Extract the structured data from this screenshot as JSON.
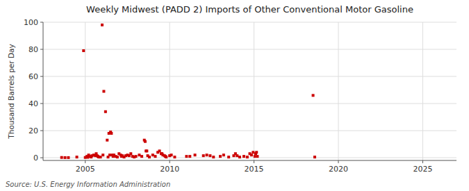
{
  "chart_data": {
    "type": "scatter",
    "title": "Weekly Midwest (PADD 2) Imports of Other Conventional Motor Gasoline",
    "ylabel": "Thousand Barrels per Day",
    "source": "Source: U.S. Energy Information Administration",
    "color": "#cc0000",
    "marker": "square",
    "grid": true,
    "xlim": [
      2002.5,
      2027.0
    ],
    "ylim": [
      -2,
      100
    ],
    "xticks": [
      2005,
      2010,
      2015,
      2020,
      2025
    ],
    "yticks": [
      0,
      20,
      40,
      60,
      80,
      100
    ],
    "x": [
      2003.6,
      2003.8,
      2004.0,
      2004.5,
      2004.9,
      2005.0,
      2005.1,
      2005.15,
      2005.2,
      2005.3,
      2005.35,
      2005.4,
      2005.5,
      2005.6,
      2005.65,
      2005.7,
      2005.75,
      2005.8,
      2005.9,
      2006.0,
      2006.05,
      2006.1,
      2006.2,
      2006.3,
      2006.35,
      2006.4,
      2006.45,
      2006.5,
      2006.55,
      2006.6,
      2006.65,
      2006.7,
      2006.8,
      2006.9,
      2007.0,
      2007.1,
      2007.15,
      2007.2,
      2007.3,
      2007.4,
      2007.5,
      2007.6,
      2007.7,
      2007.8,
      2007.9,
      2008.0,
      2008.2,
      2008.35,
      2008.5,
      2008.55,
      2008.6,
      2008.65,
      2008.7,
      2008.8,
      2009.0,
      2009.15,
      2009.3,
      2009.4,
      2009.5,
      2009.55,
      2009.6,
      2009.7,
      2009.75,
      2009.8,
      2010.0,
      2010.1,
      2010.3,
      2011.0,
      2011.2,
      2011.5,
      2012.0,
      2012.2,
      2012.4,
      2012.6,
      2013.0,
      2013.2,
      2013.5,
      2013.8,
      2013.9,
      2014.0,
      2014.15,
      2014.4,
      2014.6,
      2014.75,
      2014.85,
      2014.95,
      2015.05,
      2015.1,
      2015.15,
      2015.2,
      2018.5,
      2018.6
    ],
    "values": [
      0.2,
      0.1,
      0.1,
      0.5,
      79,
      0.2,
      1.0,
      0.3,
      2.0,
      1.0,
      0.5,
      1.5,
      2.0,
      1.5,
      3.0,
      1.5,
      1.0,
      0.5,
      0.5,
      98,
      2,
      49,
      34,
      13,
      0.5,
      18,
      2,
      19,
      18,
      2,
      1,
      2,
      1,
      0.5,
      3,
      2,
      1,
      1.5,
      0.5,
      1.5,
      2,
      1.5,
      3,
      1,
      0.5,
      1,
      2,
      1,
      13,
      12,
      5,
      5,
      1.5,
      0.5,
      2,
      1,
      4,
      5,
      3,
      3,
      2,
      1.5,
      1,
      0.5,
      1.5,
      2,
      0.5,
      1,
      1,
      2,
      1.5,
      2,
      1.5,
      0.5,
      1,
      2,
      0.5,
      1.5,
      3,
      1.5,
      0.5,
      1,
      0.5,
      3,
      2,
      4,
      1,
      3,
      4,
      1,
      46,
      0.5
    ]
  }
}
